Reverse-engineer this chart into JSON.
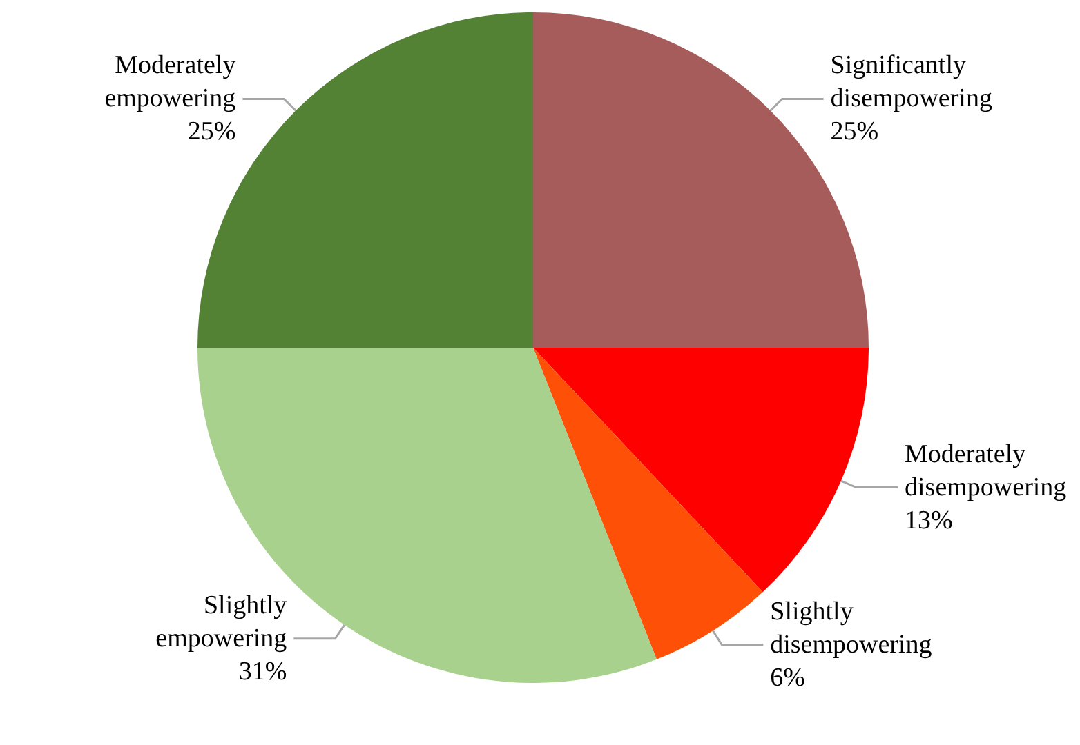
{
  "chart_data": {
    "type": "pie",
    "categories": [
      "Significantly disempowering",
      "Moderately disempowering",
      "Slightly disempowering",
      "Slightly empowering",
      "Moderately empowering"
    ],
    "values": [
      25,
      13,
      6,
      31,
      25
    ],
    "value_labels": [
      "25%",
      "13%",
      "6%",
      "31%",
      "25%"
    ],
    "colors": [
      "#a65c5a",
      "#ff0000",
      "#ff5008",
      "#a9d18e",
      "#548235"
    ],
    "legend": false
  }
}
